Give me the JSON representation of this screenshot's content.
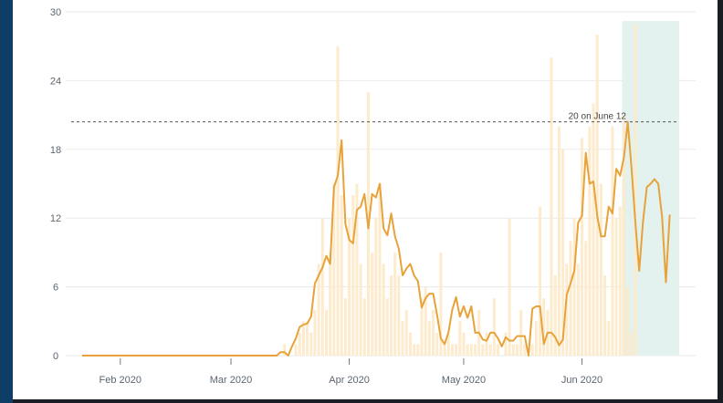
{
  "chart_data": {
    "type": "bar",
    "title": "",
    "xlabel": "",
    "ylabel": "",
    "ylim": [
      0,
      30
    ],
    "y_ticks": [
      "0",
      "6",
      "12",
      "18",
      "24",
      "30"
    ],
    "x_ticks": [
      "Feb 2020",
      "Mar 2020",
      "Apr 2020",
      "May 2020",
      "Jun 2020"
    ],
    "x_tick_dates": [
      "2020-02-01",
      "2020-03-01",
      "2020-04-01",
      "2020-05-01",
      "2020-06-01"
    ],
    "start_date": "2020-01-22",
    "end_date": "2020-06-26",
    "highlight_range": [
      "2020-06-12",
      "2020-06-26"
    ],
    "reference_line": {
      "value": 20.4,
      "label": "20 on June 12"
    },
    "grid": true,
    "series": [
      {
        "type": "bar",
        "values": [
          0,
          0,
          0,
          0,
          0,
          0,
          0,
          0,
          0,
          0,
          0,
          0,
          0,
          0,
          0,
          0,
          0,
          0,
          0,
          0,
          0,
          0,
          0,
          0,
          0,
          0,
          0,
          0,
          0,
          0,
          0,
          0,
          0,
          0,
          0,
          0,
          0,
          0,
          0,
          0,
          0,
          0,
          0,
          0,
          0,
          0,
          0,
          0,
          0,
          0,
          0,
          0,
          0,
          1,
          0,
          0,
          1,
          2,
          3,
          3,
          2,
          4,
          8,
          12,
          4,
          9,
          15,
          27,
          14,
          5,
          12,
          14,
          15,
          8,
          5,
          23,
          9,
          12,
          15,
          8,
          5,
          7,
          9,
          7,
          3,
          4,
          2,
          1,
          1,
          5,
          6,
          3,
          4,
          2,
          9,
          1,
          2,
          1,
          1,
          3,
          2,
          1,
          1,
          1,
          4,
          1,
          2,
          1,
          5,
          1,
          0,
          2,
          12,
          1,
          1,
          4,
          1,
          0,
          1,
          3,
          13,
          5,
          4,
          26,
          7,
          20,
          18,
          8,
          10,
          12,
          8,
          19,
          10,
          20,
          22,
          28,
          15,
          7,
          3,
          20,
          12,
          13,
          21,
          6,
          2,
          29
        ]
      },
      {
        "type": "line",
        "values": [
          0,
          0,
          0,
          0,
          0,
          0,
          0,
          0,
          0,
          0,
          0,
          0,
          0,
          0,
          0,
          0,
          0,
          0,
          0,
          0,
          0,
          0,
          0,
          0,
          0,
          0,
          0,
          0,
          0,
          0,
          0,
          0,
          0,
          0,
          0,
          0,
          0,
          0,
          0,
          0,
          0,
          0,
          0,
          0,
          0,
          0,
          0,
          0,
          0,
          0,
          0,
          0,
          0.3,
          0.3,
          0,
          0.8,
          1.5,
          2.5,
          2.7,
          2.8,
          3.4,
          6.3,
          7,
          7.7,
          8.7,
          8,
          14.7,
          15.7,
          18.8,
          11.5,
          10.1,
          9.8,
          12.7,
          13,
          14.1,
          11.1,
          14.1,
          13.8,
          15,
          11.1,
          10.5,
          12.4,
          10.4,
          9.3,
          7,
          7.6,
          8,
          7,
          6.5,
          4.2,
          5,
          5.4,
          5.4,
          3.6,
          1.5,
          1,
          2,
          4,
          5.1,
          3.4,
          4.3,
          3.3,
          4.3,
          2,
          2,
          1.4,
          1.3,
          2,
          2,
          1.5,
          0.8,
          1.6,
          1.3,
          1.3,
          1.7,
          1.7,
          1.7,
          0,
          4.1,
          4.3,
          4.3,
          1,
          2,
          2,
          1.6,
          0.9,
          1.4,
          5.3,
          6.3,
          7.4,
          11.6,
          12.2,
          17.7,
          15,
          15.2,
          12.2,
          10.4,
          10.4,
          13,
          12.4,
          16.3,
          15.7,
          17.3,
          20.4,
          16.3,
          11.6,
          7.4,
          11.7,
          14.7,
          15,
          15.4,
          15,
          12.1,
          6.4,
          12.3
        ]
      }
    ]
  },
  "colors": {
    "bars": "#fde9c8",
    "line": "#e8a23a",
    "highlight": "#e3f2ef",
    "grid": "#eaeaea",
    "reference": "#555555"
  }
}
